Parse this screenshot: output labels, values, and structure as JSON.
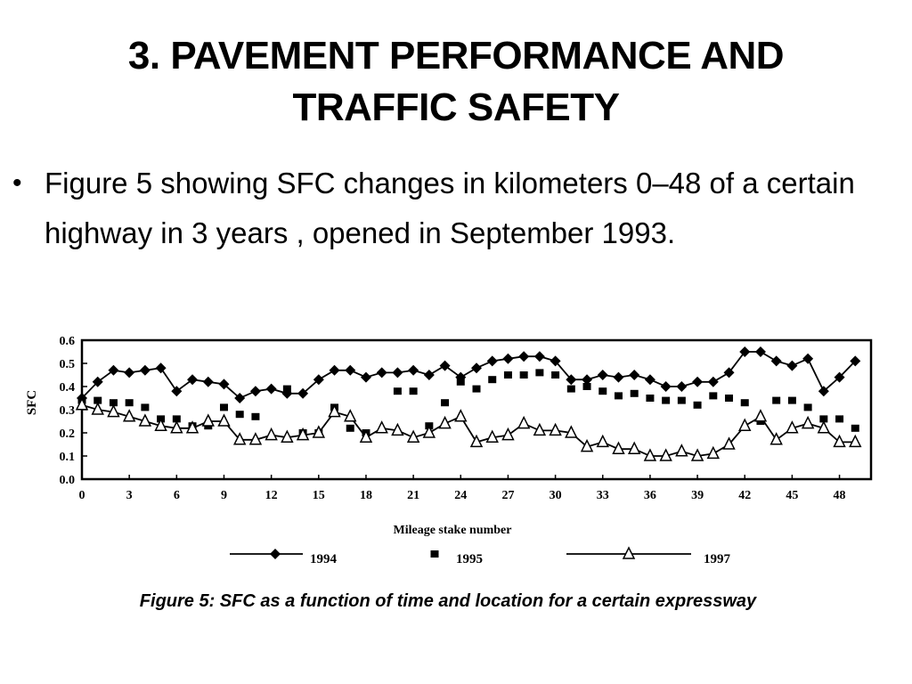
{
  "slide": {
    "title": "3. PAVEMENT PERFORMANCE AND TRAFFIC SAFETY",
    "bullet": "Figure 5 showing SFC changes in kilometers 0–48 of a certain highway in 3 years , opened in September 1993.",
    "caption": "Figure 5: SFC as a function of time and location for a certain expressway"
  },
  "chart_data": {
    "type": "line",
    "xlabel": "Mileage stake number",
    "ylabel": "SFC",
    "xlim": [
      0,
      50
    ],
    "ylim": [
      0,
      0.6
    ],
    "x_ticks": [
      0,
      3,
      6,
      9,
      12,
      15,
      18,
      21,
      24,
      27,
      30,
      33,
      36,
      39,
      42,
      45,
      48
    ],
    "y_ticks": [
      0.0,
      0.1,
      0.2,
      0.3,
      0.4,
      0.5,
      0.6
    ],
    "y_tick_labels": [
      "0.0",
      "0.1",
      "0.2",
      "0.3",
      "0.4",
      "0.5",
      "0.6"
    ],
    "x": [
      0,
      1,
      2,
      3,
      4,
      5,
      6,
      7,
      8,
      9,
      10,
      11,
      12,
      13,
      14,
      15,
      16,
      17,
      18,
      19,
      20,
      21,
      22,
      23,
      24,
      25,
      26,
      27,
      28,
      29,
      30,
      31,
      32,
      33,
      34,
      35,
      36,
      37,
      38,
      39,
      40,
      41,
      42,
      43,
      44,
      45,
      46,
      47,
      48,
      49
    ],
    "legend_position": "bottom",
    "series": [
      {
        "name": "1994",
        "marker": "diamond",
        "line": true,
        "values": [
          0.35,
          0.42,
          0.47,
          0.46,
          0.47,
          0.48,
          0.38,
          0.43,
          0.42,
          0.41,
          0.35,
          0.38,
          0.39,
          0.37,
          0.37,
          0.43,
          0.47,
          0.47,
          0.44,
          0.46,
          0.46,
          0.47,
          0.45,
          0.49,
          0.44,
          0.48,
          0.51,
          0.52,
          0.53,
          0.53,
          0.51,
          0.43,
          0.43,
          0.45,
          0.44,
          0.45,
          0.43,
          0.4,
          0.4,
          0.42,
          0.42,
          0.46,
          0.55,
          0.55,
          0.51,
          0.49,
          0.52,
          0.38,
          0.44,
          0.51
        ]
      },
      {
        "name": "1995",
        "marker": "square",
        "line": false,
        "values": [
          0.34,
          0.34,
          0.33,
          0.33,
          0.31,
          0.26,
          0.26,
          0.23,
          0.23,
          0.31,
          0.28,
          0.27,
          null,
          0.39,
          0.2,
          0.2,
          0.31,
          0.22,
          0.2,
          null,
          0.38,
          0.38,
          0.23,
          0.33,
          0.42,
          0.39,
          0.43,
          0.45,
          0.45,
          0.46,
          0.45,
          0.39,
          0.4,
          0.38,
          0.36,
          0.37,
          0.35,
          0.34,
          0.34,
          0.32,
          0.36,
          0.35,
          0.33,
          0.25,
          0.34,
          0.34,
          0.31,
          0.26,
          0.26,
          0.22
        ]
      },
      {
        "name": "1997",
        "marker": "triangle",
        "line": true,
        "values": [
          0.32,
          0.3,
          0.29,
          0.27,
          0.25,
          0.23,
          0.22,
          0.22,
          0.25,
          0.25,
          0.17,
          0.17,
          0.19,
          0.18,
          0.19,
          0.2,
          0.29,
          0.27,
          0.18,
          0.22,
          0.21,
          0.18,
          0.2,
          0.24,
          0.27,
          0.16,
          0.18,
          0.19,
          0.24,
          0.21,
          0.21,
          0.2,
          0.14,
          0.16,
          0.13,
          0.13,
          0.1,
          0.1,
          0.12,
          0.1,
          0.11,
          0.15,
          0.23,
          0.27,
          0.17,
          0.22,
          0.24,
          0.22,
          0.16,
          0.16
        ]
      }
    ]
  }
}
